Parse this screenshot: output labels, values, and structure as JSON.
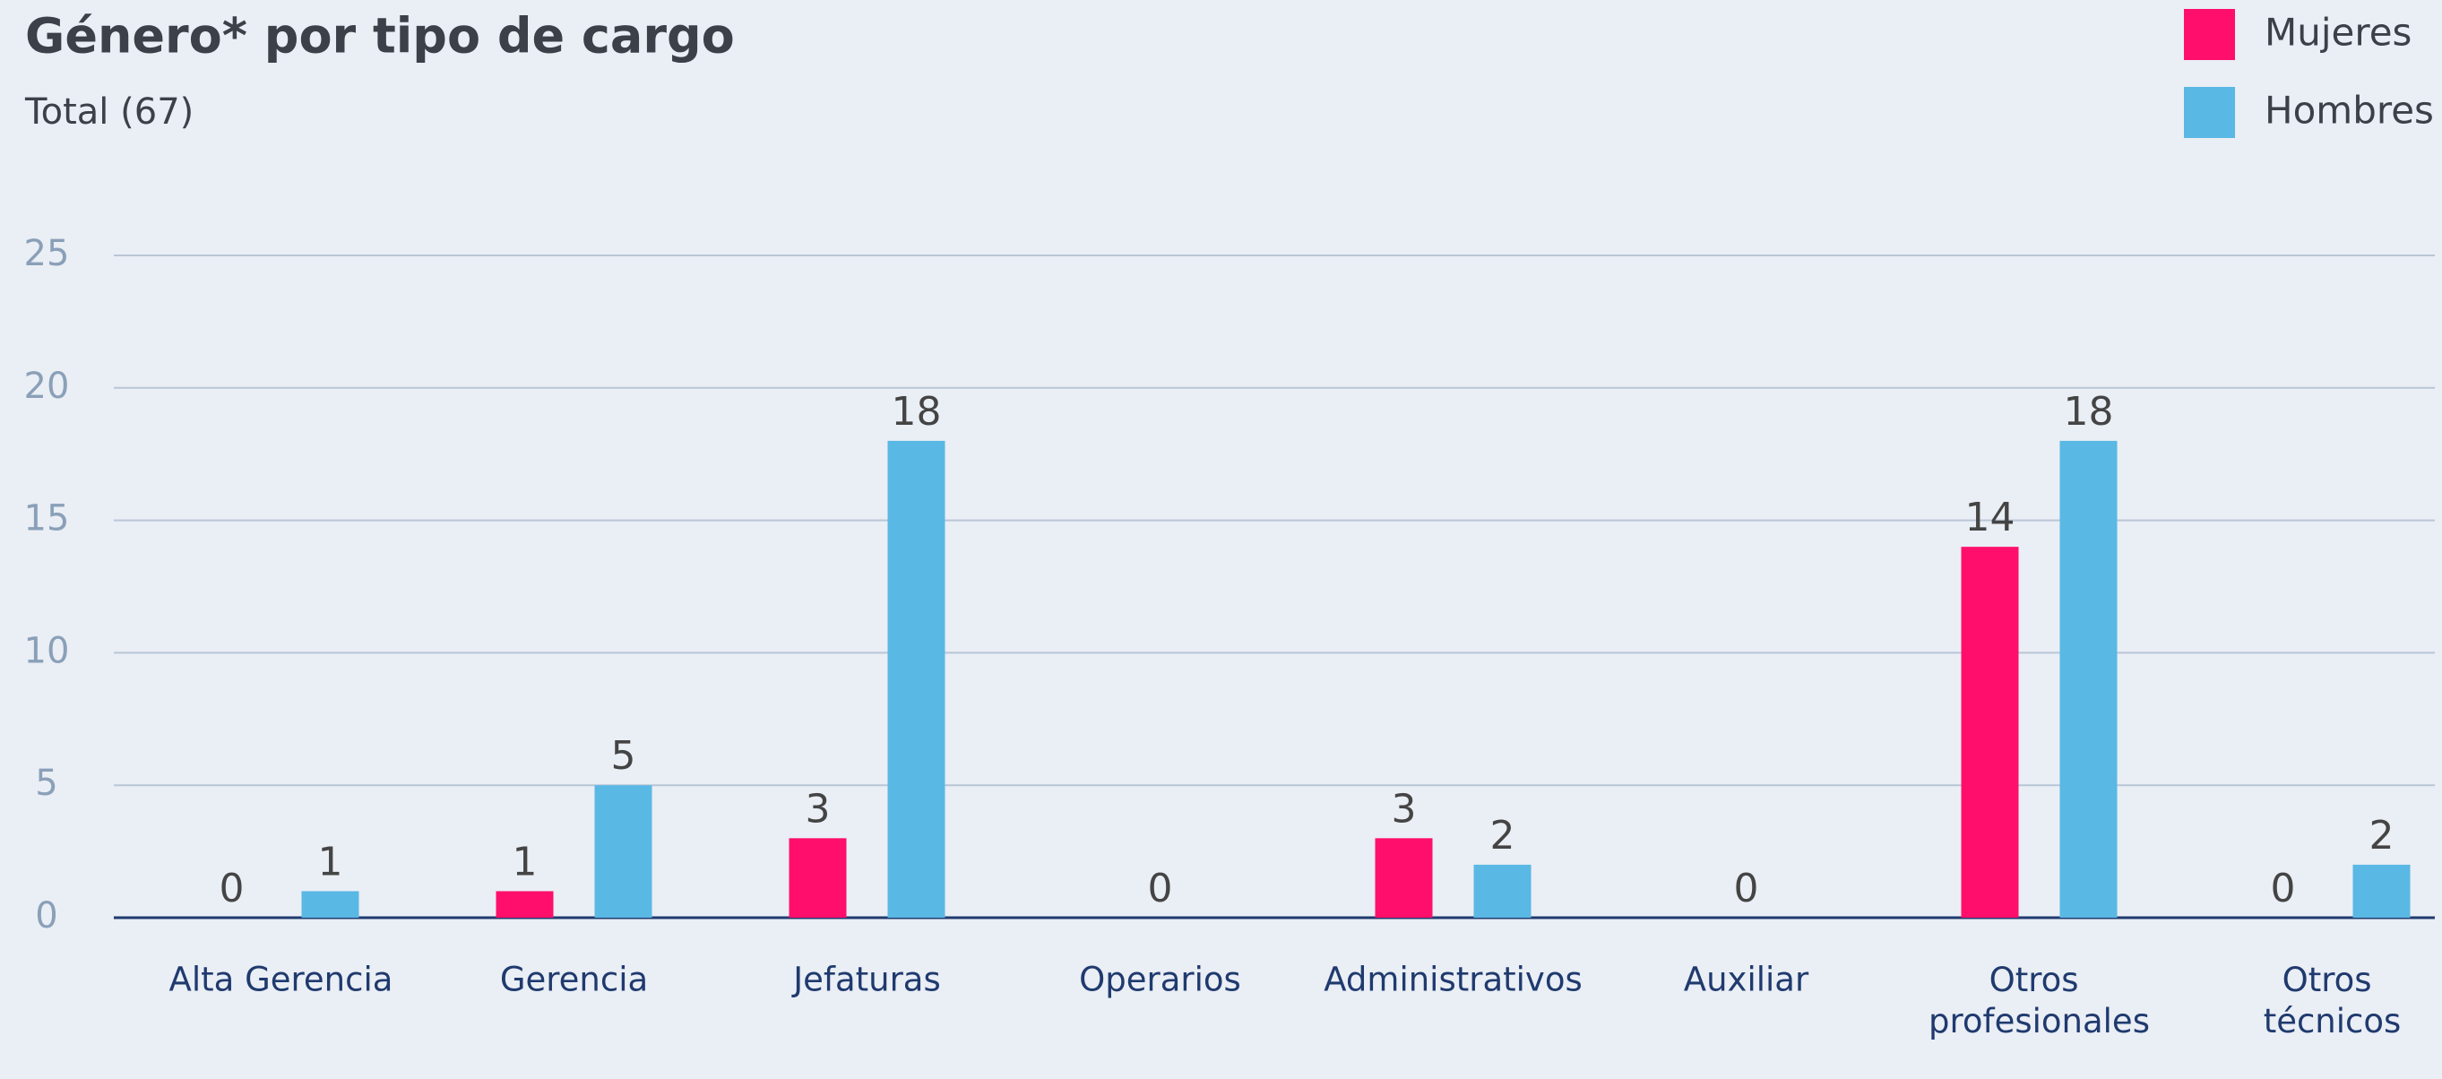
{
  "chart_data": {
    "type": "bar",
    "title": "Género* por tipo de cargo",
    "subtitle": "Total (67)",
    "categories": [
      "Alta Gerencia",
      "Gerencia",
      "Jefaturas",
      "Operarios",
      "Administrativos",
      "Auxiliar",
      "Otros profesionales",
      "Otros técnicos"
    ],
    "series": [
      {
        "name": "Mujeres",
        "color": "#ff0f6b",
        "values": [
          0,
          1,
          3,
          0,
          3,
          0,
          14,
          0
        ]
      },
      {
        "name": "Hombres",
        "color": "#5ab8e4",
        "values": [
          1,
          5,
          18,
          null,
          2,
          null,
          18,
          2
        ]
      }
    ],
    "ylim": [
      0,
      25
    ],
    "yticks": [
      0,
      5,
      10,
      15,
      20,
      25
    ],
    "grid": true,
    "legend": "top-right"
  }
}
